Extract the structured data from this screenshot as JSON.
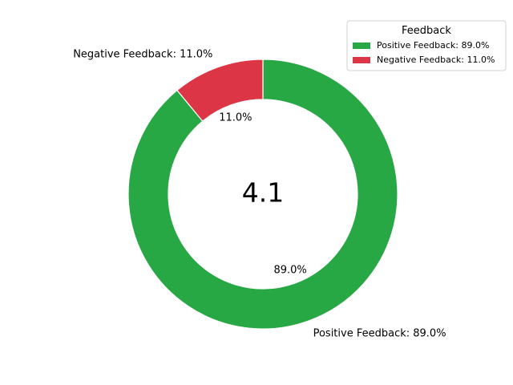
{
  "chart_data": {
    "type": "pie",
    "variant": "donut",
    "center_text": "4.1",
    "legend": {
      "title": "Feedback",
      "placement": "top-right"
    },
    "slices": [
      {
        "label": "Positive Feedback",
        "value": 89.0,
        "color": "#28a745",
        "outer_label": "Positive Feedback: 89.0%",
        "pct_label": "89.0%",
        "legend_label": "Positive Feedback: 89.0%"
      },
      {
        "label": "Negative Feedback",
        "value": 11.0,
        "color": "#dc3545",
        "outer_label": "Negative Feedback: 11.0%",
        "pct_label": "11.0%",
        "legend_label": "Negative Feedback: 11.0%"
      }
    ]
  }
}
